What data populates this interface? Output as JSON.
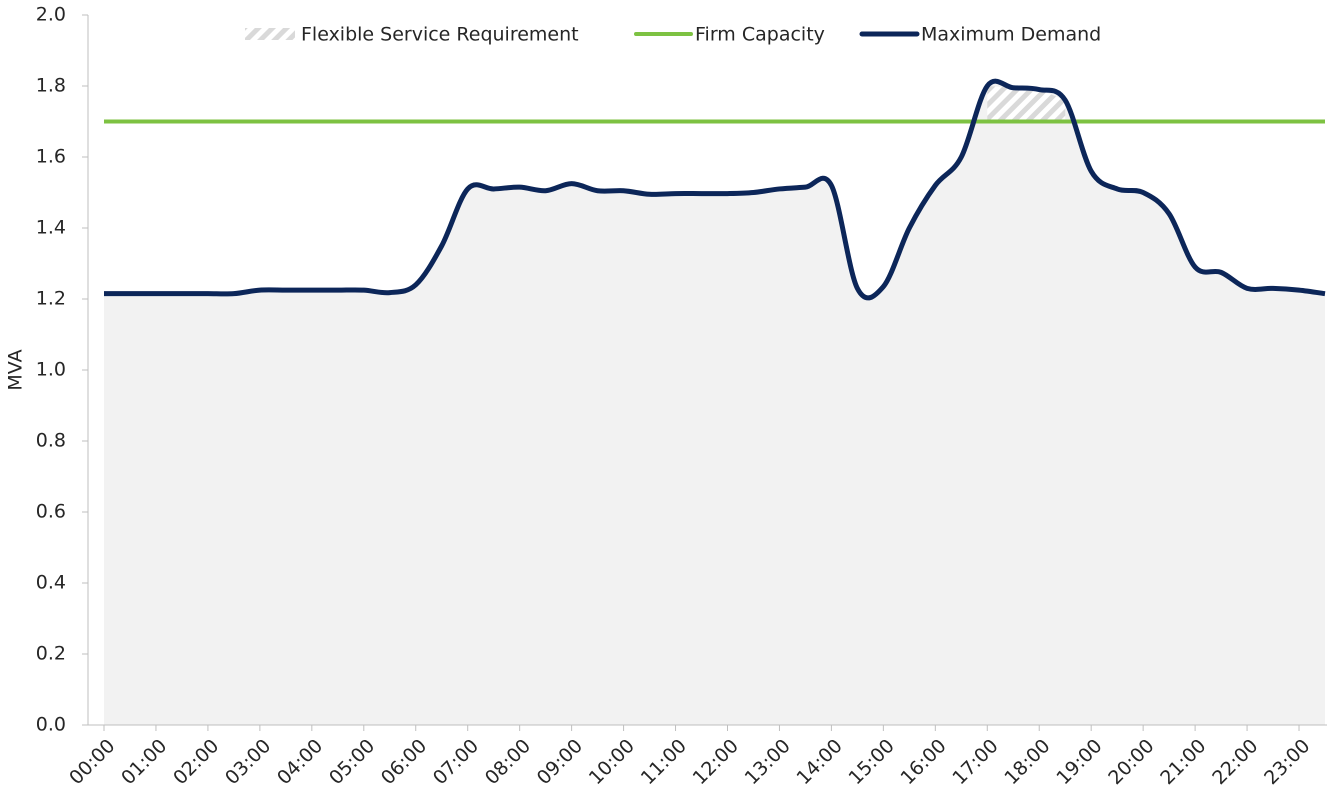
{
  "chart_data": {
    "type": "line",
    "y_label": "MVA",
    "categories": [
      "00:00",
      null,
      "01:00",
      null,
      "02:00",
      null,
      "03:00",
      null,
      "04:00",
      null,
      "05:00",
      null,
      "06:00",
      null,
      "07:00",
      null,
      "08:00",
      null,
      "09:00",
      null,
      "10:00",
      null,
      "11:00",
      null,
      "12:00",
      null,
      "13:00",
      null,
      "14:00",
      null,
      "15:00",
      null,
      "16:00",
      null,
      "17:00",
      null,
      "18:00",
      null,
      "19:00",
      null,
      "20:00",
      null,
      "21:00",
      null,
      "22:00",
      null,
      "23:00",
      null
    ],
    "series": [
      {
        "name": "Flexible Service Requirement",
        "color": "#d9d9d9",
        "pattern": "hatch",
        "values": [
          null,
          null,
          null,
          null,
          null,
          null,
          null,
          null,
          null,
          null,
          null,
          null,
          null,
          null,
          null,
          null,
          null,
          null,
          null,
          null,
          null,
          null,
          null,
          null,
          null,
          null,
          null,
          null,
          null,
          null,
          null,
          null,
          null,
          null,
          0.1,
          0.095,
          0.09,
          0.06,
          null,
          null,
          null,
          null,
          null,
          null,
          null,
          null,
          null,
          null
        ]
      },
      {
        "name": "Firm Capacity",
        "color": "#7dc242",
        "values": [
          1.7,
          1.7,
          1.7,
          1.7,
          1.7,
          1.7,
          1.7,
          1.7,
          1.7,
          1.7,
          1.7,
          1.7,
          1.7,
          1.7,
          1.7,
          1.7,
          1.7,
          1.7,
          1.7,
          1.7,
          1.7,
          1.7,
          1.7,
          1.7,
          1.7,
          1.7,
          1.7,
          1.7,
          1.7,
          1.7,
          1.7,
          1.7,
          1.7,
          1.7,
          1.7,
          1.7,
          1.7,
          1.7,
          1.7,
          1.7,
          1.7,
          1.7,
          1.7,
          1.7,
          1.7,
          1.7,
          1.7,
          1.7
        ]
      },
      {
        "name": "Maximum Demand",
        "color": "#0c2659",
        "area_color": "#f2f2f2",
        "values": [
          1.215,
          1.215,
          1.215,
          1.215,
          1.215,
          1.215,
          1.225,
          1.225,
          1.225,
          1.225,
          1.225,
          1.218,
          1.24,
          1.35,
          1.51,
          1.51,
          1.515,
          1.505,
          1.525,
          1.505,
          1.505,
          1.495,
          1.497,
          1.497,
          1.497,
          1.5,
          1.51,
          1.515,
          1.52,
          1.23,
          1.235,
          1.4,
          1.52,
          1.6,
          1.8,
          1.795,
          1.79,
          1.76,
          1.56,
          1.51,
          1.5,
          1.44,
          1.29,
          1.275,
          1.23,
          1.23,
          1.225,
          1.215
        ]
      }
    ],
    "ylim": [
      0,
      2
    ],
    "yticks": [
      {
        "value": 0,
        "label": "0.0"
      },
      {
        "value": 0.2,
        "label": "0.2"
      },
      {
        "value": 0.4,
        "label": "0.4"
      },
      {
        "value": 0.6,
        "label": "0.6"
      },
      {
        "value": 0.8,
        "label": "0.8"
      },
      {
        "value": 1,
        "label": "1.0"
      },
      {
        "value": 1.2,
        "label": "1.2"
      },
      {
        "value": 1.4,
        "label": "1.4"
      },
      {
        "value": 1.6,
        "label": "1.6"
      },
      {
        "value": 1.8,
        "label": "1.8"
      },
      {
        "value": 2,
        "label": "2.0"
      }
    ],
    "legend": "top"
  }
}
